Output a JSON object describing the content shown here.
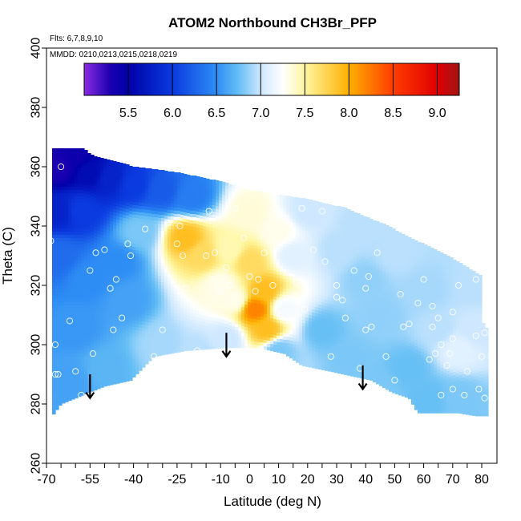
{
  "chart_data": {
    "type": "heatmap",
    "title": "ATOM2 Northbound CH3Br_PFP",
    "flights_label": "Flts: 6,7,8,9,10",
    "mmdd_label": "MMDD: 0210,0213,0215,0218,0219",
    "xlabel": "Latitude (deg N)",
    "ylabel": "Theta (C)",
    "xlim": [
      -70,
      82
    ],
    "ylim": [
      260,
      400
    ],
    "x_ticks": [
      -70,
      -55,
      -40,
      -25,
      -10,
      0,
      10,
      20,
      30,
      40,
      50,
      60,
      70,
      80
    ],
    "x_minor_ticks": [
      -65,
      -60,
      -50,
      -45,
      -35,
      -30,
      -20,
      -15,
      -5,
      5,
      15,
      25,
      35,
      45,
      55,
      65,
      75
    ],
    "y_ticks": [
      260,
      280,
      300,
      320,
      340,
      360,
      380,
      400
    ],
    "colorbar": {
      "range": [
        5.0,
        9.25
      ],
      "ticks": [
        5.5,
        6.0,
        6.5,
        7.0,
        7.5,
        8.0,
        8.5,
        9.0
      ],
      "stops": [
        {
          "value": 5.0,
          "color": "#8a2be2"
        },
        {
          "value": 5.3,
          "color": "#1a00b0"
        },
        {
          "value": 5.5,
          "color": "#0000a8"
        },
        {
          "value": 6.0,
          "color": "#0a3ae0"
        },
        {
          "value": 6.5,
          "color": "#2e8df5"
        },
        {
          "value": 6.75,
          "color": "#66bff5"
        },
        {
          "value": 7.0,
          "color": "#cfe8ff"
        },
        {
          "value": 7.25,
          "color": "#ffffff"
        },
        {
          "value": 7.5,
          "color": "#fff6a0"
        },
        {
          "value": 8.0,
          "color": "#ffb000"
        },
        {
          "value": 8.5,
          "color": "#ff3c00"
        },
        {
          "value": 9.0,
          "color": "#e00000"
        },
        {
          "value": 9.25,
          "color": "#a01515"
        }
      ]
    },
    "field_points": [
      {
        "lat": -66,
        "theta": 360,
        "value": 5.3
      },
      {
        "lat": -60,
        "theta": 364,
        "value": 5.4
      },
      {
        "lat": -55,
        "theta": 358,
        "value": 5.6
      },
      {
        "lat": -48,
        "theta": 356,
        "value": 5.8
      },
      {
        "lat": -40,
        "theta": 354,
        "value": 6.0
      },
      {
        "lat": -30,
        "theta": 352,
        "value": 6.2
      },
      {
        "lat": -20,
        "theta": 350,
        "value": 6.4
      },
      {
        "lat": -66,
        "theta": 345,
        "value": 5.8
      },
      {
        "lat": -58,
        "theta": 345,
        "value": 6.0
      },
      {
        "lat": -66,
        "theta": 330,
        "value": 6.3
      },
      {
        "lat": -55,
        "theta": 322,
        "value": 6.5
      },
      {
        "lat": -60,
        "theta": 305,
        "value": 6.55
      },
      {
        "lat": -62,
        "theta": 288,
        "value": 6.6
      },
      {
        "lat": -50,
        "theta": 292,
        "value": 6.7
      },
      {
        "lat": -42,
        "theta": 315,
        "value": 6.6
      },
      {
        "lat": -38,
        "theta": 338,
        "value": 6.8
      },
      {
        "lat": -30,
        "theta": 300,
        "value": 6.9
      },
      {
        "lat": -18,
        "theta": 298,
        "value": 6.95
      },
      {
        "lat": -22,
        "theta": 336,
        "value": 7.9
      },
      {
        "lat": -16,
        "theta": 330,
        "value": 7.7
      },
      {
        "lat": -10,
        "theta": 320,
        "value": 7.3
      },
      {
        "lat": -7,
        "theta": 332,
        "value": 7.45
      },
      {
        "lat": -5,
        "theta": 315,
        "value": 7.3
      },
      {
        "lat": 0,
        "theta": 328,
        "value": 7.7
      },
      {
        "lat": 2,
        "theta": 312,
        "value": 8.2
      },
      {
        "lat": 5,
        "theta": 318,
        "value": 7.9
      },
      {
        "lat": 6,
        "theta": 305,
        "value": 7.9
      },
      {
        "lat": 0,
        "theta": 345,
        "value": 7.35
      },
      {
        "lat": 10,
        "theta": 338,
        "value": 7.3
      },
      {
        "lat": 15,
        "theta": 330,
        "value": 7.1
      },
      {
        "lat": 12,
        "theta": 312,
        "value": 7.2
      },
      {
        "lat": 10,
        "theta": 298,
        "value": 6.8
      },
      {
        "lat": -8,
        "theta": 302,
        "value": 7.0
      },
      {
        "lat": 20,
        "theta": 345,
        "value": 7.0
      },
      {
        "lat": 30,
        "theta": 332,
        "value": 6.95
      },
      {
        "lat": 40,
        "theta": 322,
        "value": 6.85
      },
      {
        "lat": 25,
        "theta": 305,
        "value": 6.75
      },
      {
        "lat": 35,
        "theta": 295,
        "value": 6.8
      },
      {
        "lat": 45,
        "theta": 310,
        "value": 6.85
      },
      {
        "lat": 50,
        "theta": 330,
        "value": 6.95
      },
      {
        "lat": 60,
        "theta": 318,
        "value": 6.9
      },
      {
        "lat": 65,
        "theta": 305,
        "value": 6.95
      },
      {
        "lat": 72,
        "theta": 298,
        "value": 7.1
      },
      {
        "lat": 78,
        "theta": 305,
        "value": 7.0
      },
      {
        "lat": 55,
        "theta": 292,
        "value": 6.75
      },
      {
        "lat": 62,
        "theta": 282,
        "value": 6.75
      },
      {
        "lat": 45,
        "theta": 285,
        "value": 6.8
      },
      {
        "lat": 72,
        "theta": 282,
        "value": 6.8
      },
      {
        "lat": 78,
        "theta": 320,
        "value": 6.95
      },
      {
        "lat": -45,
        "theta": 328,
        "value": 6.5
      },
      {
        "lat": 38,
        "theta": 340,
        "value": 6.95
      }
    ],
    "domain_upper": [
      [
        -67,
        366
      ],
      [
        -63,
        366
      ],
      [
        -61,
        366
      ],
      [
        -57,
        366
      ],
      [
        -55,
        364
      ],
      [
        -40,
        360
      ],
      [
        -25,
        358
      ],
      [
        -10,
        355
      ],
      [
        0,
        352
      ],
      [
        20,
        349
      ],
      [
        33,
        346
      ],
      [
        40,
        343
      ],
      [
        48,
        340
      ],
      [
        53,
        337
      ],
      [
        62,
        333
      ],
      [
        70,
        329
      ],
      [
        75,
        326
      ],
      [
        80,
        323
      ],
      [
        80,
        308
      ],
      [
        82,
        305
      ],
      [
        82,
        276
      ]
    ],
    "domain_lower": [
      [
        -68,
        276
      ],
      [
        -65,
        280
      ],
      [
        -60,
        282
      ],
      [
        -50,
        286
      ],
      [
        -41,
        288
      ],
      [
        -33,
        296
      ],
      [
        -22,
        298
      ],
      [
        -8,
        299
      ],
      [
        3,
        299
      ],
      [
        12,
        297
      ],
      [
        18,
        293
      ],
      [
        28,
        291
      ],
      [
        42,
        288
      ],
      [
        49,
        284
      ],
      [
        55,
        282
      ],
      [
        58,
        277
      ],
      [
        66,
        277
      ],
      [
        72,
        277
      ],
      [
        78,
        276
      ]
    ],
    "samples": [
      [
        -68.5,
        335
      ],
      [
        -67,
        300
      ],
      [
        -67,
        290
      ],
      [
        -66,
        290
      ],
      [
        -65,
        360
      ],
      [
        -62,
        308
      ],
      [
        -60,
        291
      ],
      [
        -58,
        283
      ],
      [
        -55,
        325
      ],
      [
        -54,
        297
      ],
      [
        -53,
        331
      ],
      [
        -50,
        332
      ],
      [
        -48,
        319
      ],
      [
        -47,
        305
      ],
      [
        -46,
        322
      ],
      [
        -45,
        285
      ],
      [
        -44,
        309
      ],
      [
        -42,
        334
      ],
      [
        -41,
        330
      ],
      [
        -36,
        339
      ],
      [
        -33,
        296
      ],
      [
        -30,
        305
      ],
      [
        -28,
        341
      ],
      [
        -25,
        334
      ],
      [
        -24,
        340
      ],
      [
        -23,
        330
      ],
      [
        -22,
        319
      ],
      [
        -18,
        298
      ],
      [
        -18,
        297
      ],
      [
        -15,
        330
      ],
      [
        -14,
        345
      ],
      [
        -12,
        331
      ],
      [
        -10,
        318
      ],
      [
        -8,
        326
      ],
      [
        -7,
        320
      ],
      [
        -5,
        346
      ],
      [
        -2,
        336
      ],
      [
        0,
        323
      ],
      [
        2,
        318
      ],
      [
        3,
        322
      ],
      [
        5,
        331
      ],
      [
        7,
        345
      ],
      [
        8,
        320
      ],
      [
        10,
        314
      ],
      [
        12,
        343
      ],
      [
        14,
        337
      ],
      [
        16,
        321
      ],
      [
        18,
        346
      ],
      [
        19,
        312
      ],
      [
        22,
        332
      ],
      [
        25,
        345
      ],
      [
        26,
        328
      ],
      [
        28,
        296
      ],
      [
        30,
        320
      ],
      [
        30,
        316
      ],
      [
        32,
        315
      ],
      [
        33,
        309
      ],
      [
        36,
        325
      ],
      [
        38,
        292
      ],
      [
        40,
        305
      ],
      [
        40,
        319
      ],
      [
        41,
        323
      ],
      [
        42,
        306
      ],
      [
        44,
        331
      ],
      [
        47,
        296
      ],
      [
        50,
        288
      ],
      [
        52,
        317
      ],
      [
        53,
        306
      ],
      [
        55,
        307
      ],
      [
        58,
        314
      ],
      [
        60,
        322
      ],
      [
        62,
        295
      ],
      [
        63,
        306
      ],
      [
        63,
        313
      ],
      [
        64,
        297
      ],
      [
        65,
        309
      ],
      [
        66,
        283
      ],
      [
        66,
        300
      ],
      [
        68,
        293
      ],
      [
        69,
        297
      ],
      [
        70,
        285
      ],
      [
        70,
        302
      ],
      [
        70,
        311
      ],
      [
        72,
        320
      ],
      [
        74,
        283
      ],
      [
        75,
        291
      ],
      [
        78,
        303
      ],
      [
        78,
        322
      ],
      [
        79,
        285
      ],
      [
        80,
        296
      ],
      [
        81,
        304
      ],
      [
        81,
        282
      ]
    ],
    "arrows": [
      {
        "lat": -55,
        "theta_top": 290,
        "theta_bottom": 282
      },
      {
        "lat": -8,
        "theta_top": 304,
        "theta_bottom": 296
      },
      {
        "lat": 39,
        "theta_top": 293,
        "theta_bottom": 285
      }
    ]
  }
}
